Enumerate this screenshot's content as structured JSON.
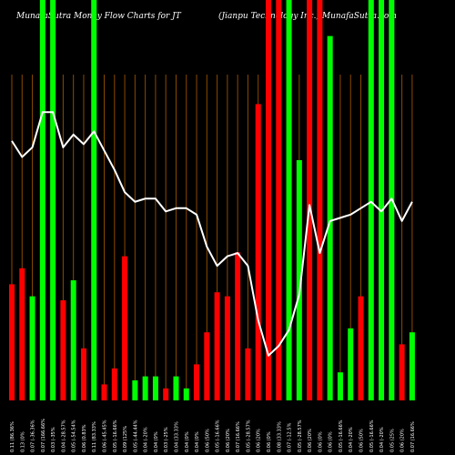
{
  "chart_data": {
    "type": "bar",
    "title_left": "MunafaSutra  Money Flow  Charts for JT",
    "title_right": "(Jianpu  Technology  Inc.) MunafaSutra.com",
    "ylim": [
      0,
      100
    ],
    "line_ylim": [
      0,
      100
    ],
    "grid": true,
    "colors": {
      "up": "#00ff00",
      "down": "#ff0000",
      "line": "#ffffff",
      "grid": "#8b4a00",
      "background": "#000000"
    },
    "categories": [
      "0.11 (86.36%",
      "0.13 (0%",
      "0.07 (-36.36%",
      "0.07 (166.66%",
      "0.03 (-35%",
      "0.04 (-28.57%",
      "0.05 (-54.54%",
      "0.06 (0.83%",
      "0.11 (83.33%",
      "0.06 (-45.45%",
      "0.05 (-16.66%",
      "0.09 (125%",
      "0.05 (-44.44%",
      "0.04 (-20%",
      "0.04 (0%",
      "0.03 (-25%",
      "0.04 (33.33%",
      "0.04 (0%",
      "0.04 (0%",
      "0.06 (50%",
      "0.05 (-16.66%",
      "0.06 (20%",
      "0.07 (16.66%",
      "0.05 (-28.57%",
      "0.06 (20%",
      "0.06 (0%",
      "0.08 (33.33%",
      "0.07 (-12.5%",
      "0.05 (-28.57%",
      "0.06 (20%",
      "0.06 (0%",
      "0.06 (0%",
      "0.05 (-16.66%",
      "0.04 (-20%",
      "0.06 (50%",
      "0.05 (-16.66%",
      "0.04 (-20%",
      "0.05 (25%",
      "0.06 (20%",
      "0.07 (16.66%"
    ],
    "series": [
      {
        "values": [
          29,
          33,
          26,
          100,
          100,
          25,
          30,
          13,
          100,
          4,
          8,
          36,
          5,
          6,
          6,
          3,
          6,
          3,
          9,
          17,
          27,
          26,
          37,
          13,
          74,
          100,
          100,
          100,
          60,
          100,
          100,
          91,
          7,
          18,
          26,
          100,
          100,
          100,
          14,
          17
        ],
        "directions": [
          "down",
          "down",
          "up",
          "up",
          "up",
          "down",
          "up",
          "down",
          "up",
          "down",
          "down",
          "down",
          "up",
          "up",
          "up",
          "down",
          "up",
          "up",
          "down",
          "down",
          "down",
          "down",
          "down",
          "down",
          "down",
          "down",
          "down",
          "up",
          "up",
          "down",
          "down",
          "up",
          "up",
          "up",
          "down",
          "up",
          "up",
          "up",
          "down",
          "up"
        ]
      },
      {
        "line": [
          81,
          76,
          79,
          90,
          90,
          79,
          83,
          80,
          84,
          78,
          72,
          65,
          62,
          63,
          63,
          59,
          60,
          60,
          58,
          48,
          42,
          45,
          46,
          42,
          25,
          14,
          17,
          22,
          33,
          61,
          46,
          56,
          57,
          58,
          60,
          62,
          59,
          63,
          56,
          62
        ]
      }
    ]
  }
}
